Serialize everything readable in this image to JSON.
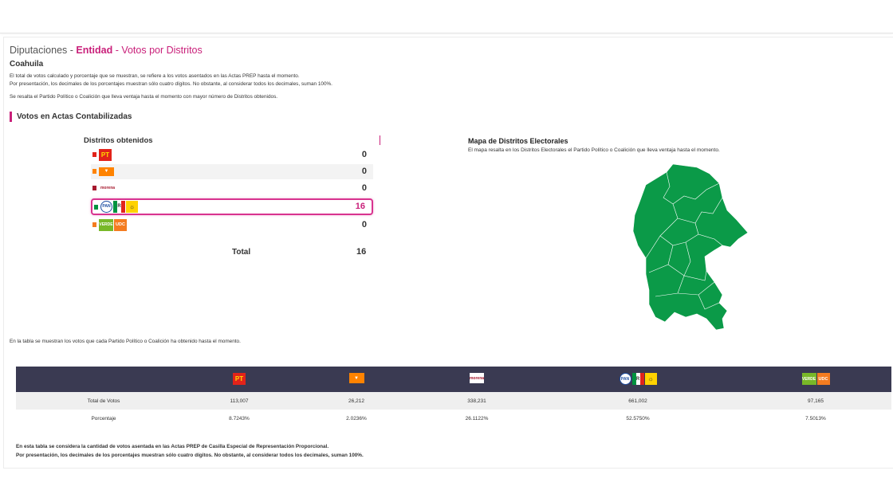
{
  "header": {
    "title_part1": "Diputaciones - ",
    "title_part2": "Entidad",
    "title_part3": " - Votos por Distritos",
    "state": "Coahuila",
    "note1": "El total de votos calculado y porcentaje que se muestran, se refiere a los votos asentados en las Actas PREP hasta el momento.",
    "note2": "Por presentación, los decimales de los porcentajes muestran sólo cuatro dígitos. No obstante, al considerar todos los decimales, suman 100%.",
    "note3": "Se resalta el Partido Político o Coalición que lleva ventaja hasta el momento con mayor número de Distritos obtenidos."
  },
  "section_title": "Votos en Actas Contabilizadas",
  "districts": {
    "title": "Distritos obtenidos",
    "rows": [
      {
        "party": "PT",
        "value": "0",
        "color": "#e2231a"
      },
      {
        "party": "MC",
        "value": "0",
        "color": "#ff8300"
      },
      {
        "party": "morena",
        "value": "0",
        "color": "#a6192e"
      },
      {
        "party": "PAN-PRI-PRD",
        "value": "16",
        "color": "#00923f"
      },
      {
        "party": "VERDE-UDC",
        "value": "0",
        "color": "#f47c20"
      }
    ],
    "total_label": "Total",
    "total_value": "16"
  },
  "logos": {
    "pt": "PT",
    "mc": "MC",
    "morena": "morena",
    "pan": "PAN",
    "pri": "PRI",
    "prd": "PRD",
    "verde": "VERDE",
    "udc": "UDC"
  },
  "map": {
    "title": "Mapa de Distritos Electorales",
    "description": "El mapa resalta en los Distritos Electorales el Partido Político o Coalición que lleva ventaja hasta el momento.",
    "fill_color": "#0b9a48"
  },
  "table_note": "En la tabla se muestran los votos que cada Partido Político o Coalición ha obtenido hasta el momento.",
  "votes_table": {
    "rows": [
      {
        "label": "Total de Votos",
        "values": [
          "113,007",
          "26,212",
          "338,231",
          "661,002",
          "97,165"
        ]
      },
      {
        "label": "Porcentaje",
        "values": [
          "8.7243%",
          "2.0236%",
          "26.1122%",
          "52.5750%",
          "7.5013%"
        ]
      }
    ]
  },
  "footer": {
    "line1": "En esta tabla se considera la cantidad de votos asentada en las Actas PREP de Casilla Especial de Representación Proporcional.",
    "line2": "Por presentación, los decimales de los porcentajes muestran sólo cuatro dígitos. No obstante, al considerar todos los decimales, suman 100%."
  }
}
